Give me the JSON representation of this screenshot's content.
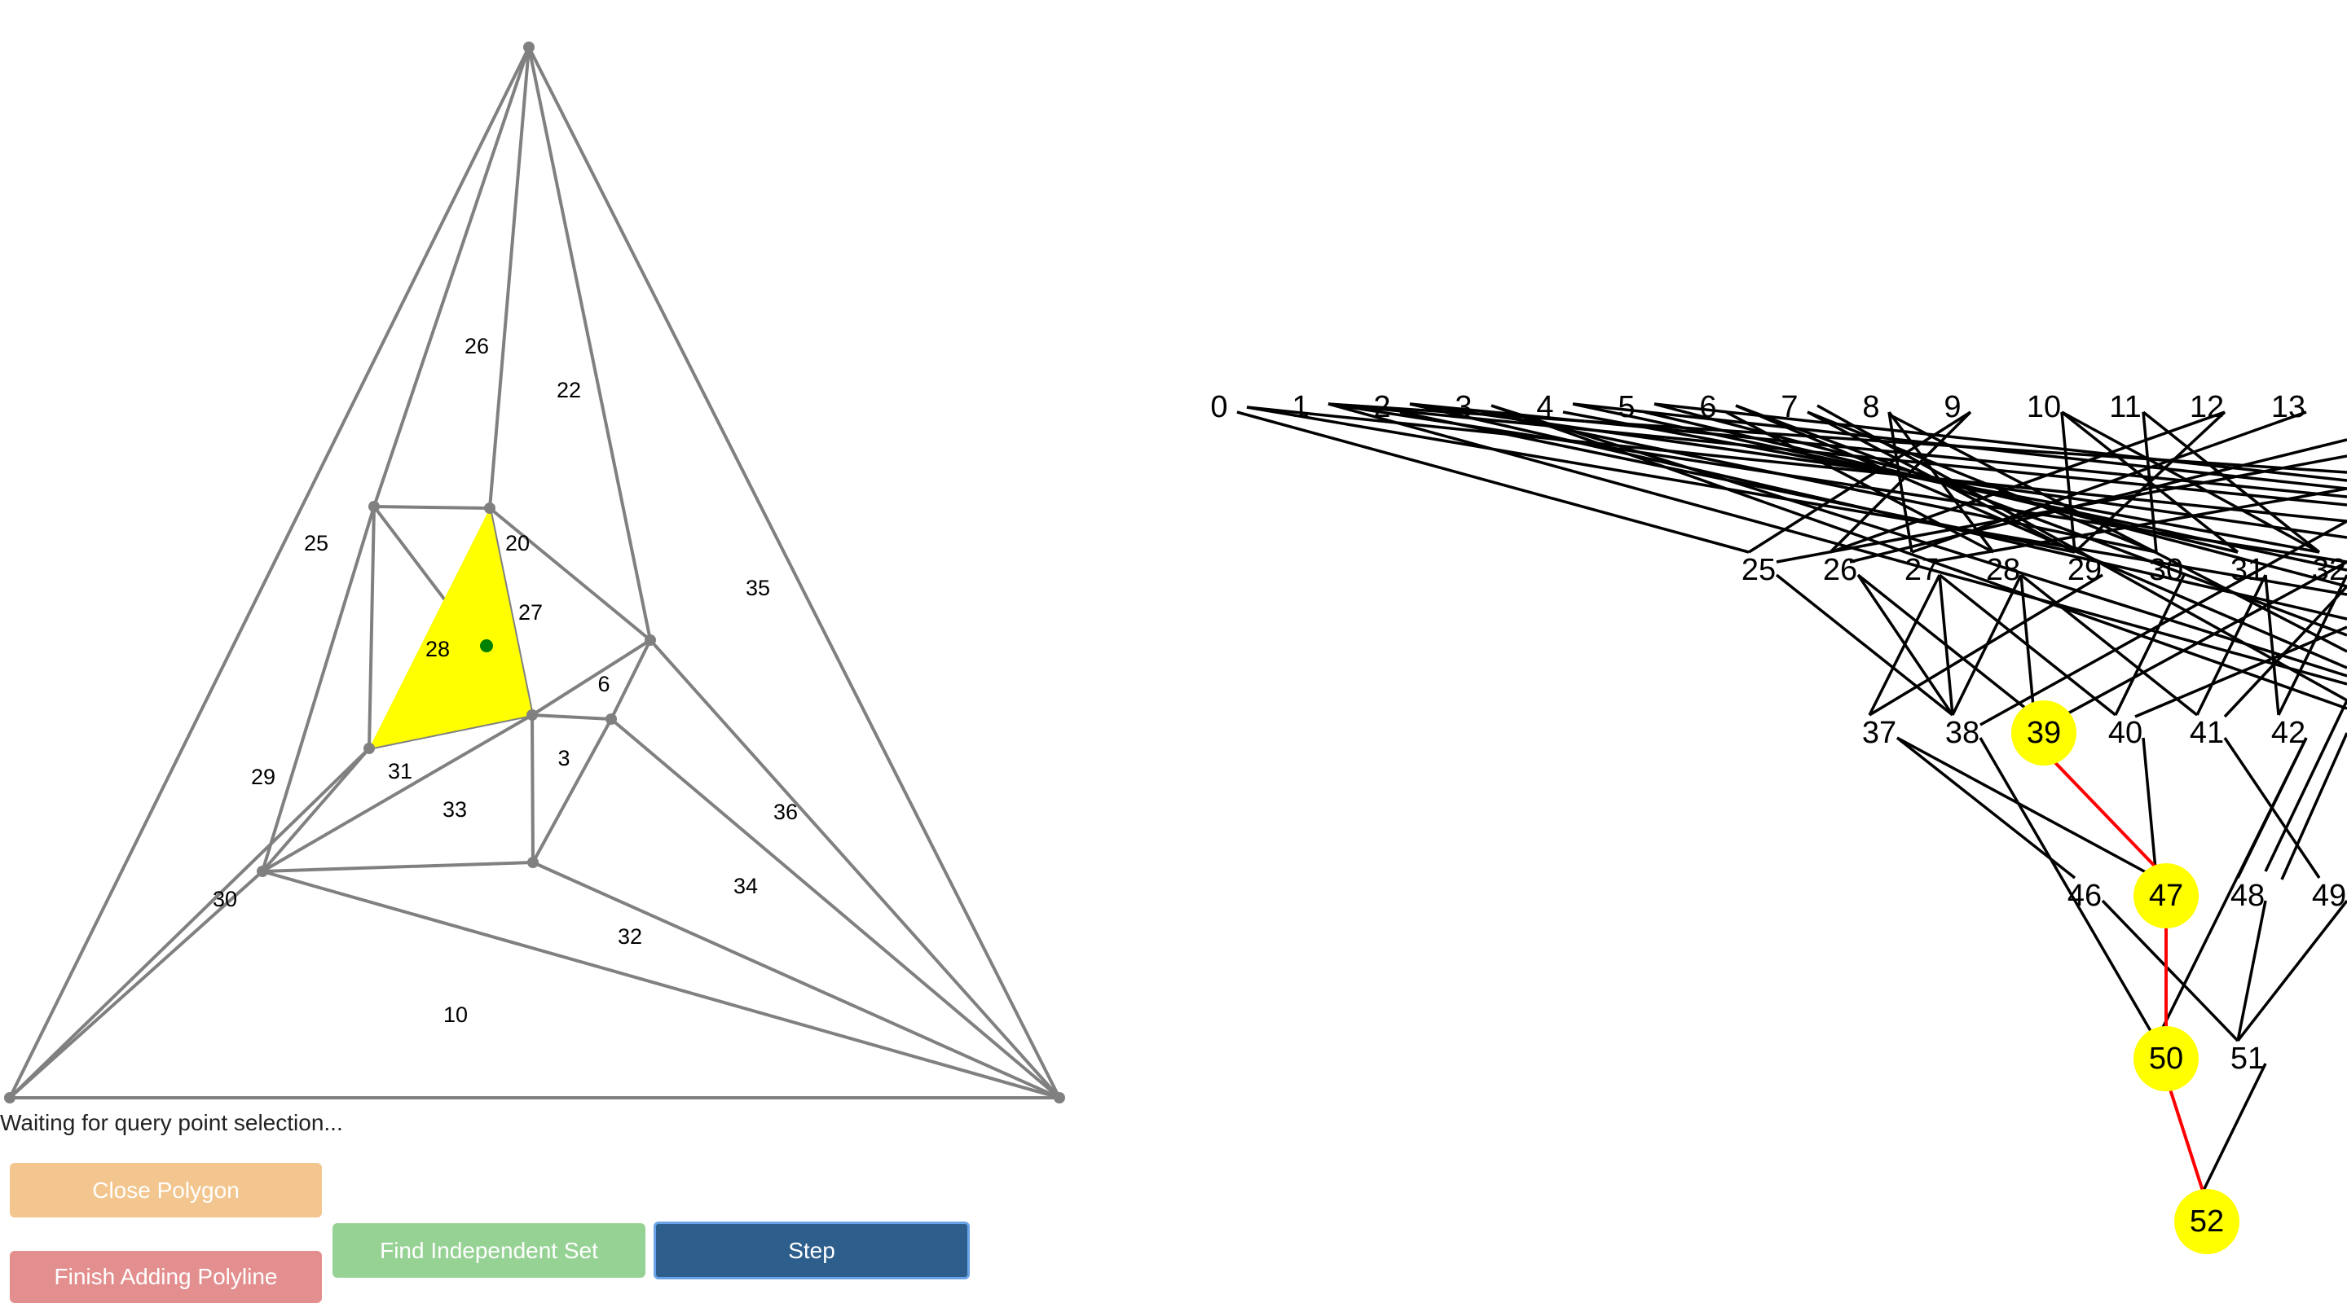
{
  "status_text": "Waiting for query point selection...",
  "buttons": {
    "close_polygon": "Close Polygon",
    "finish_polyline": "Finish Adding Polyline",
    "find_independent_set": "Find Independent Set",
    "step": "Step"
  },
  "colors": {
    "edge": "#808080",
    "highlight": "#ffff00",
    "query_point": "#008000",
    "tree_edge": "#000000",
    "path_edge": "#ff0000"
  },
  "triangulation": {
    "region_labels": [
      "26",
      "22",
      "25",
      "20",
      "27",
      "28",
      "35",
      "6",
      "29",
      "31",
      "33",
      "3",
      "36",
      "30",
      "34",
      "32",
      "10"
    ],
    "highlighted_region": "28"
  },
  "hierarchy": {
    "levels": [
      [
        "0",
        "1",
        "2",
        "3",
        "4",
        "5",
        "6",
        "7",
        "8",
        "9",
        "10",
        "11",
        "12",
        "13"
      ],
      [
        "25",
        "26",
        "27",
        "28",
        "29",
        "30",
        "31",
        "32"
      ],
      [
        "37",
        "38",
        "39",
        "40",
        "41",
        "42"
      ],
      [
        "46",
        "47",
        "48",
        "49"
      ],
      [
        "50",
        "51"
      ],
      [
        "52"
      ]
    ],
    "highlighted_nodes": [
      "39",
      "47",
      "50",
      "52"
    ]
  }
}
